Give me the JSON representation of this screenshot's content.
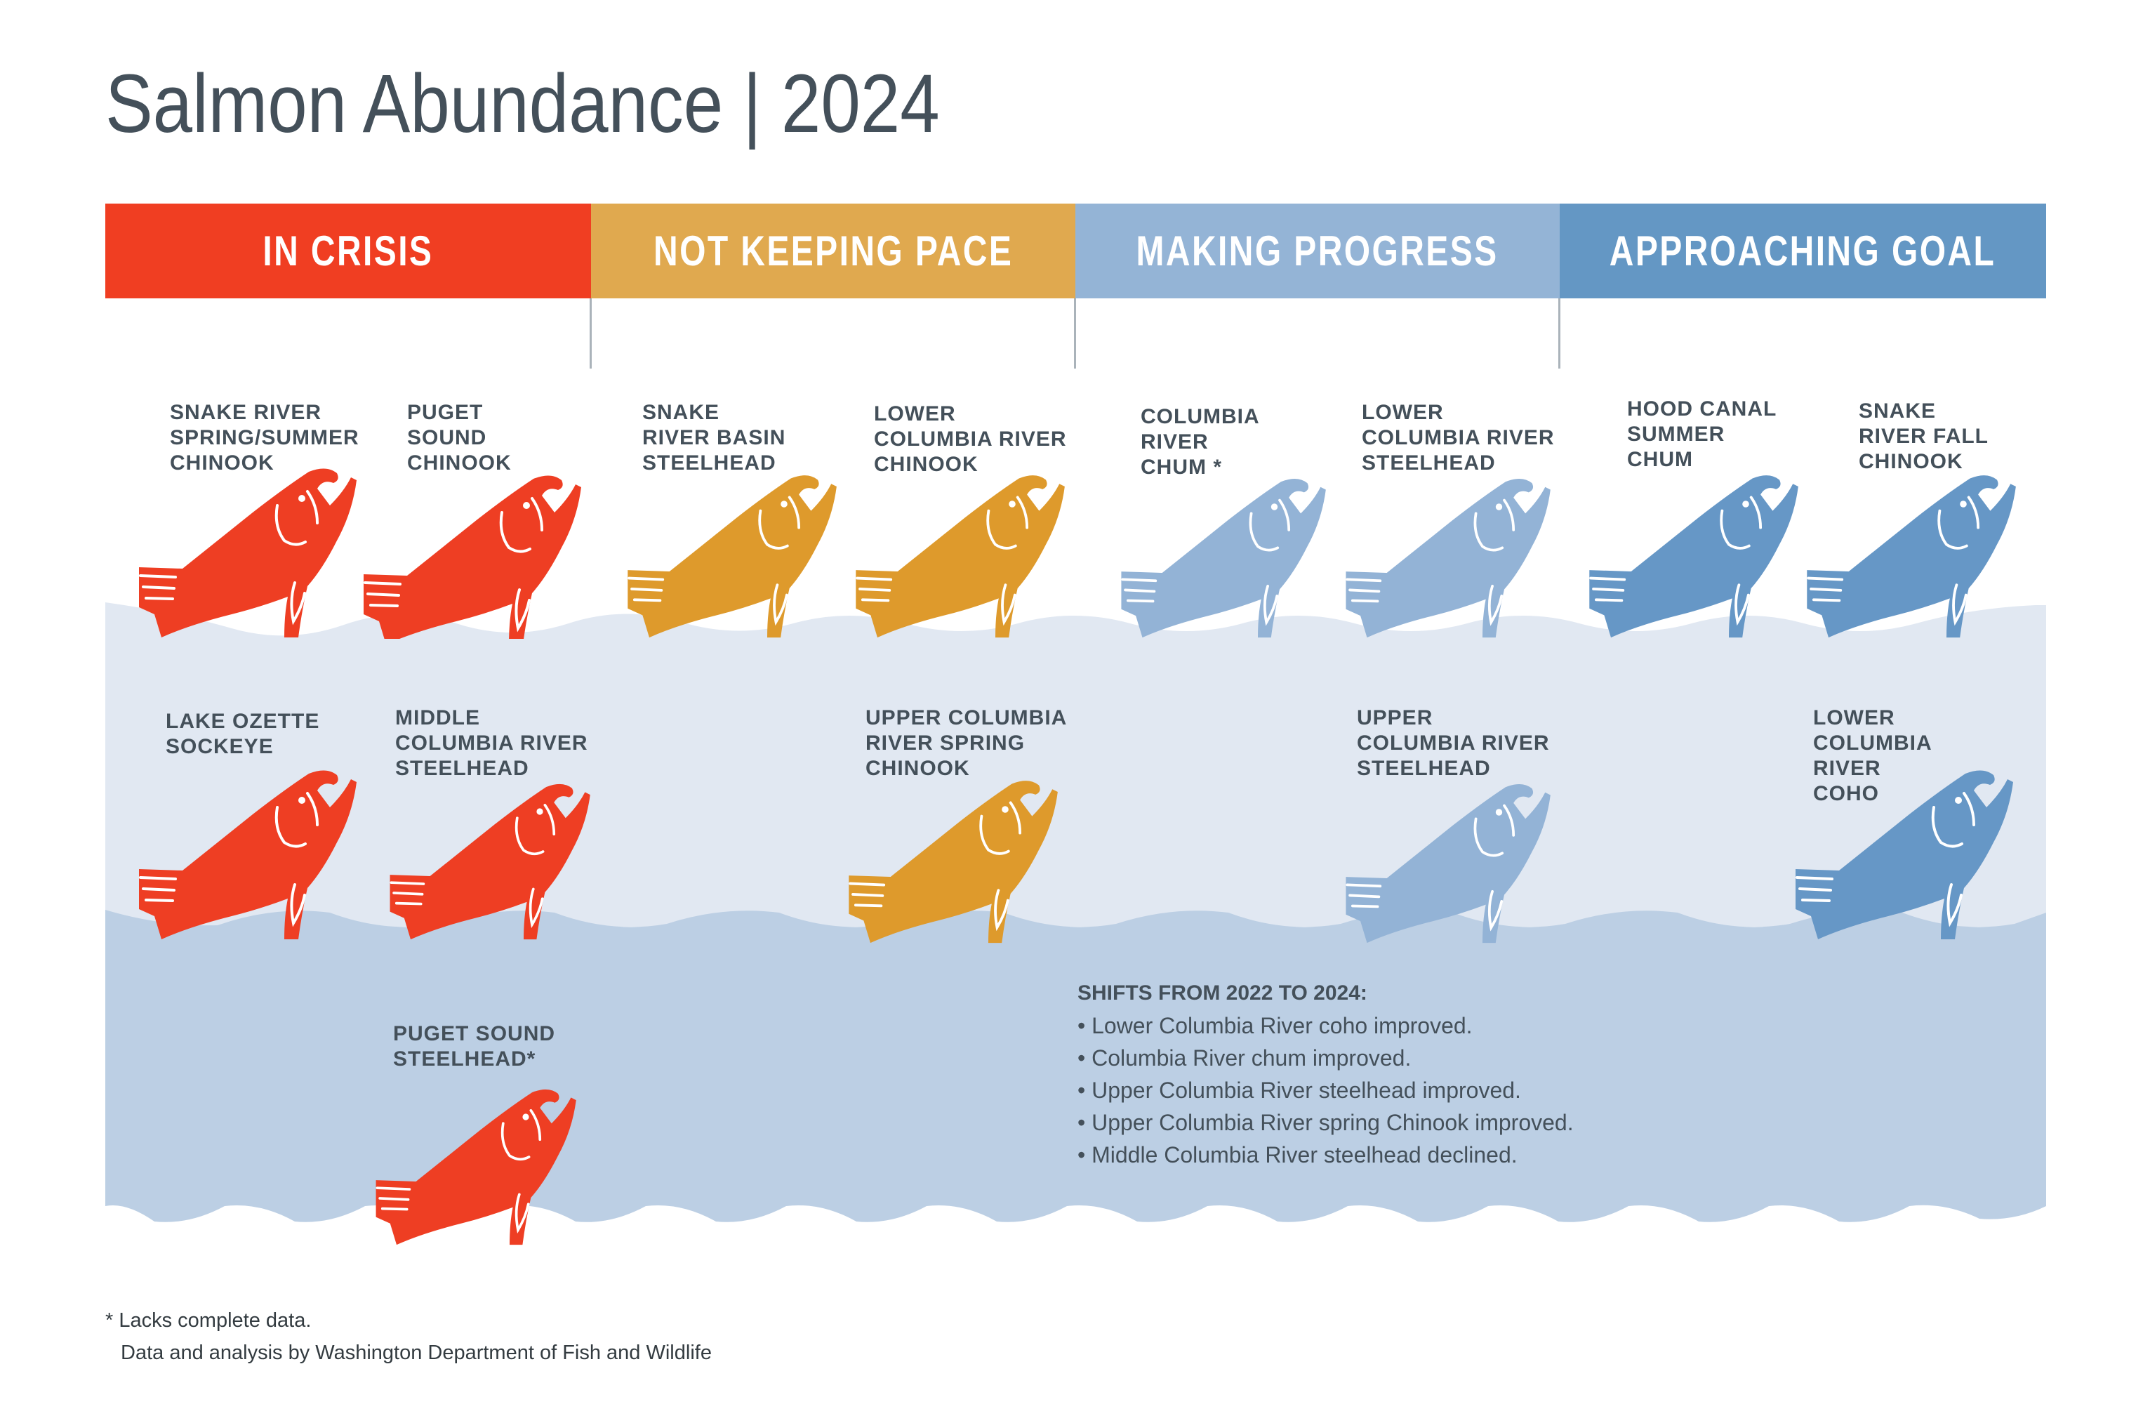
{
  "title": "Salmon Abundance | 2024",
  "colors": {
    "crisis": "#f03e22",
    "not_keeping_pace": "#e0a94f",
    "making_progress": "#94b4d6",
    "approaching_goal": "#6497c4",
    "fish_crisis": "#ee3e23",
    "fish_pace": "#de9a2c",
    "fish_progress": "#93b3d6",
    "fish_goal": "#6697c6",
    "water_top": "#e1e8f2",
    "water_bottom": "#bccfe4",
    "text": "#44505a"
  },
  "categories": [
    {
      "label": "IN CRISIS",
      "color": "#f03e22"
    },
    {
      "label": "NOT KEEPING PACE",
      "color": "#e0a94f"
    },
    {
      "label": "MAKING PROGRESS",
      "color": "#94b4d6"
    },
    {
      "label": "APPROACHING GOAL",
      "color": "#6497c4"
    }
  ],
  "species": [
    {
      "label": "SNAKE RIVER\nSPRING/SUMMER\nCHINOOK",
      "status": "IN CRISIS",
      "color": "#ee3e23"
    },
    {
      "label": "PUGET\nSOUND\nCHINOOK",
      "status": "IN CRISIS",
      "color": "#ee3e23"
    },
    {
      "label": "LAKE OZETTE\nSOCKEYE",
      "status": "IN CRISIS",
      "color": "#ee3e23"
    },
    {
      "label": "MIDDLE\nCOLUMBIA RIVER\nSTEELHEAD",
      "status": "IN CRISIS",
      "color": "#ee3e23"
    },
    {
      "label": "PUGET SOUND\nSTEELHEAD*",
      "status": "IN CRISIS",
      "color": "#ee3e23"
    },
    {
      "label": "SNAKE\nRIVER BASIN\nSTEELHEAD",
      "status": "NOT KEEPING PACE",
      "color": "#de9a2c"
    },
    {
      "label": "LOWER\nCOLUMBIA RIVER\nCHINOOK",
      "status": "NOT KEEPING PACE",
      "color": "#de9a2c"
    },
    {
      "label": "UPPER COLUMBIA\nRIVER SPRING\nCHINOOK",
      "status": "NOT KEEPING PACE",
      "color": "#de9a2c"
    },
    {
      "label": "COLUMBIA\nRIVER\nCHUM *",
      "status": "MAKING PROGRESS",
      "color": "#93b3d6"
    },
    {
      "label": "LOWER\nCOLUMBIA RIVER\nSTEELHEAD",
      "status": "MAKING PROGRESS",
      "color": "#93b3d6"
    },
    {
      "label": "UPPER\nCOLUMBIA RIVER\nSTEELHEAD",
      "status": "MAKING PROGRESS",
      "color": "#93b3d6"
    },
    {
      "label": "HOOD CANAL\nSUMMER\nCHUM",
      "status": "APPROACHING GOAL",
      "color": "#6697c6"
    },
    {
      "label": "SNAKE\nRIVER FALL\nCHINOOK",
      "status": "APPROACHING GOAL",
      "color": "#6697c6"
    },
    {
      "label": "LOWER\nCOLUMBIA\nRIVER\nCOHO",
      "status": "APPROACHING GOAL",
      "color": "#6697c6"
    }
  ],
  "shifts": {
    "heading": "SHIFTS FROM 2022 TO 2024:",
    "items": [
      "Lower Columbia River coho improved.",
      "Columbia River chum improved.",
      "Upper Columbia River steelhead improved.",
      "Upper Columbia River spring Chinook improved.",
      "Middle Columbia River steelhead declined."
    ]
  },
  "footnote": "* Lacks complete data.",
  "source": "Data and analysis by Washington Department of Fish and Wildlife"
}
